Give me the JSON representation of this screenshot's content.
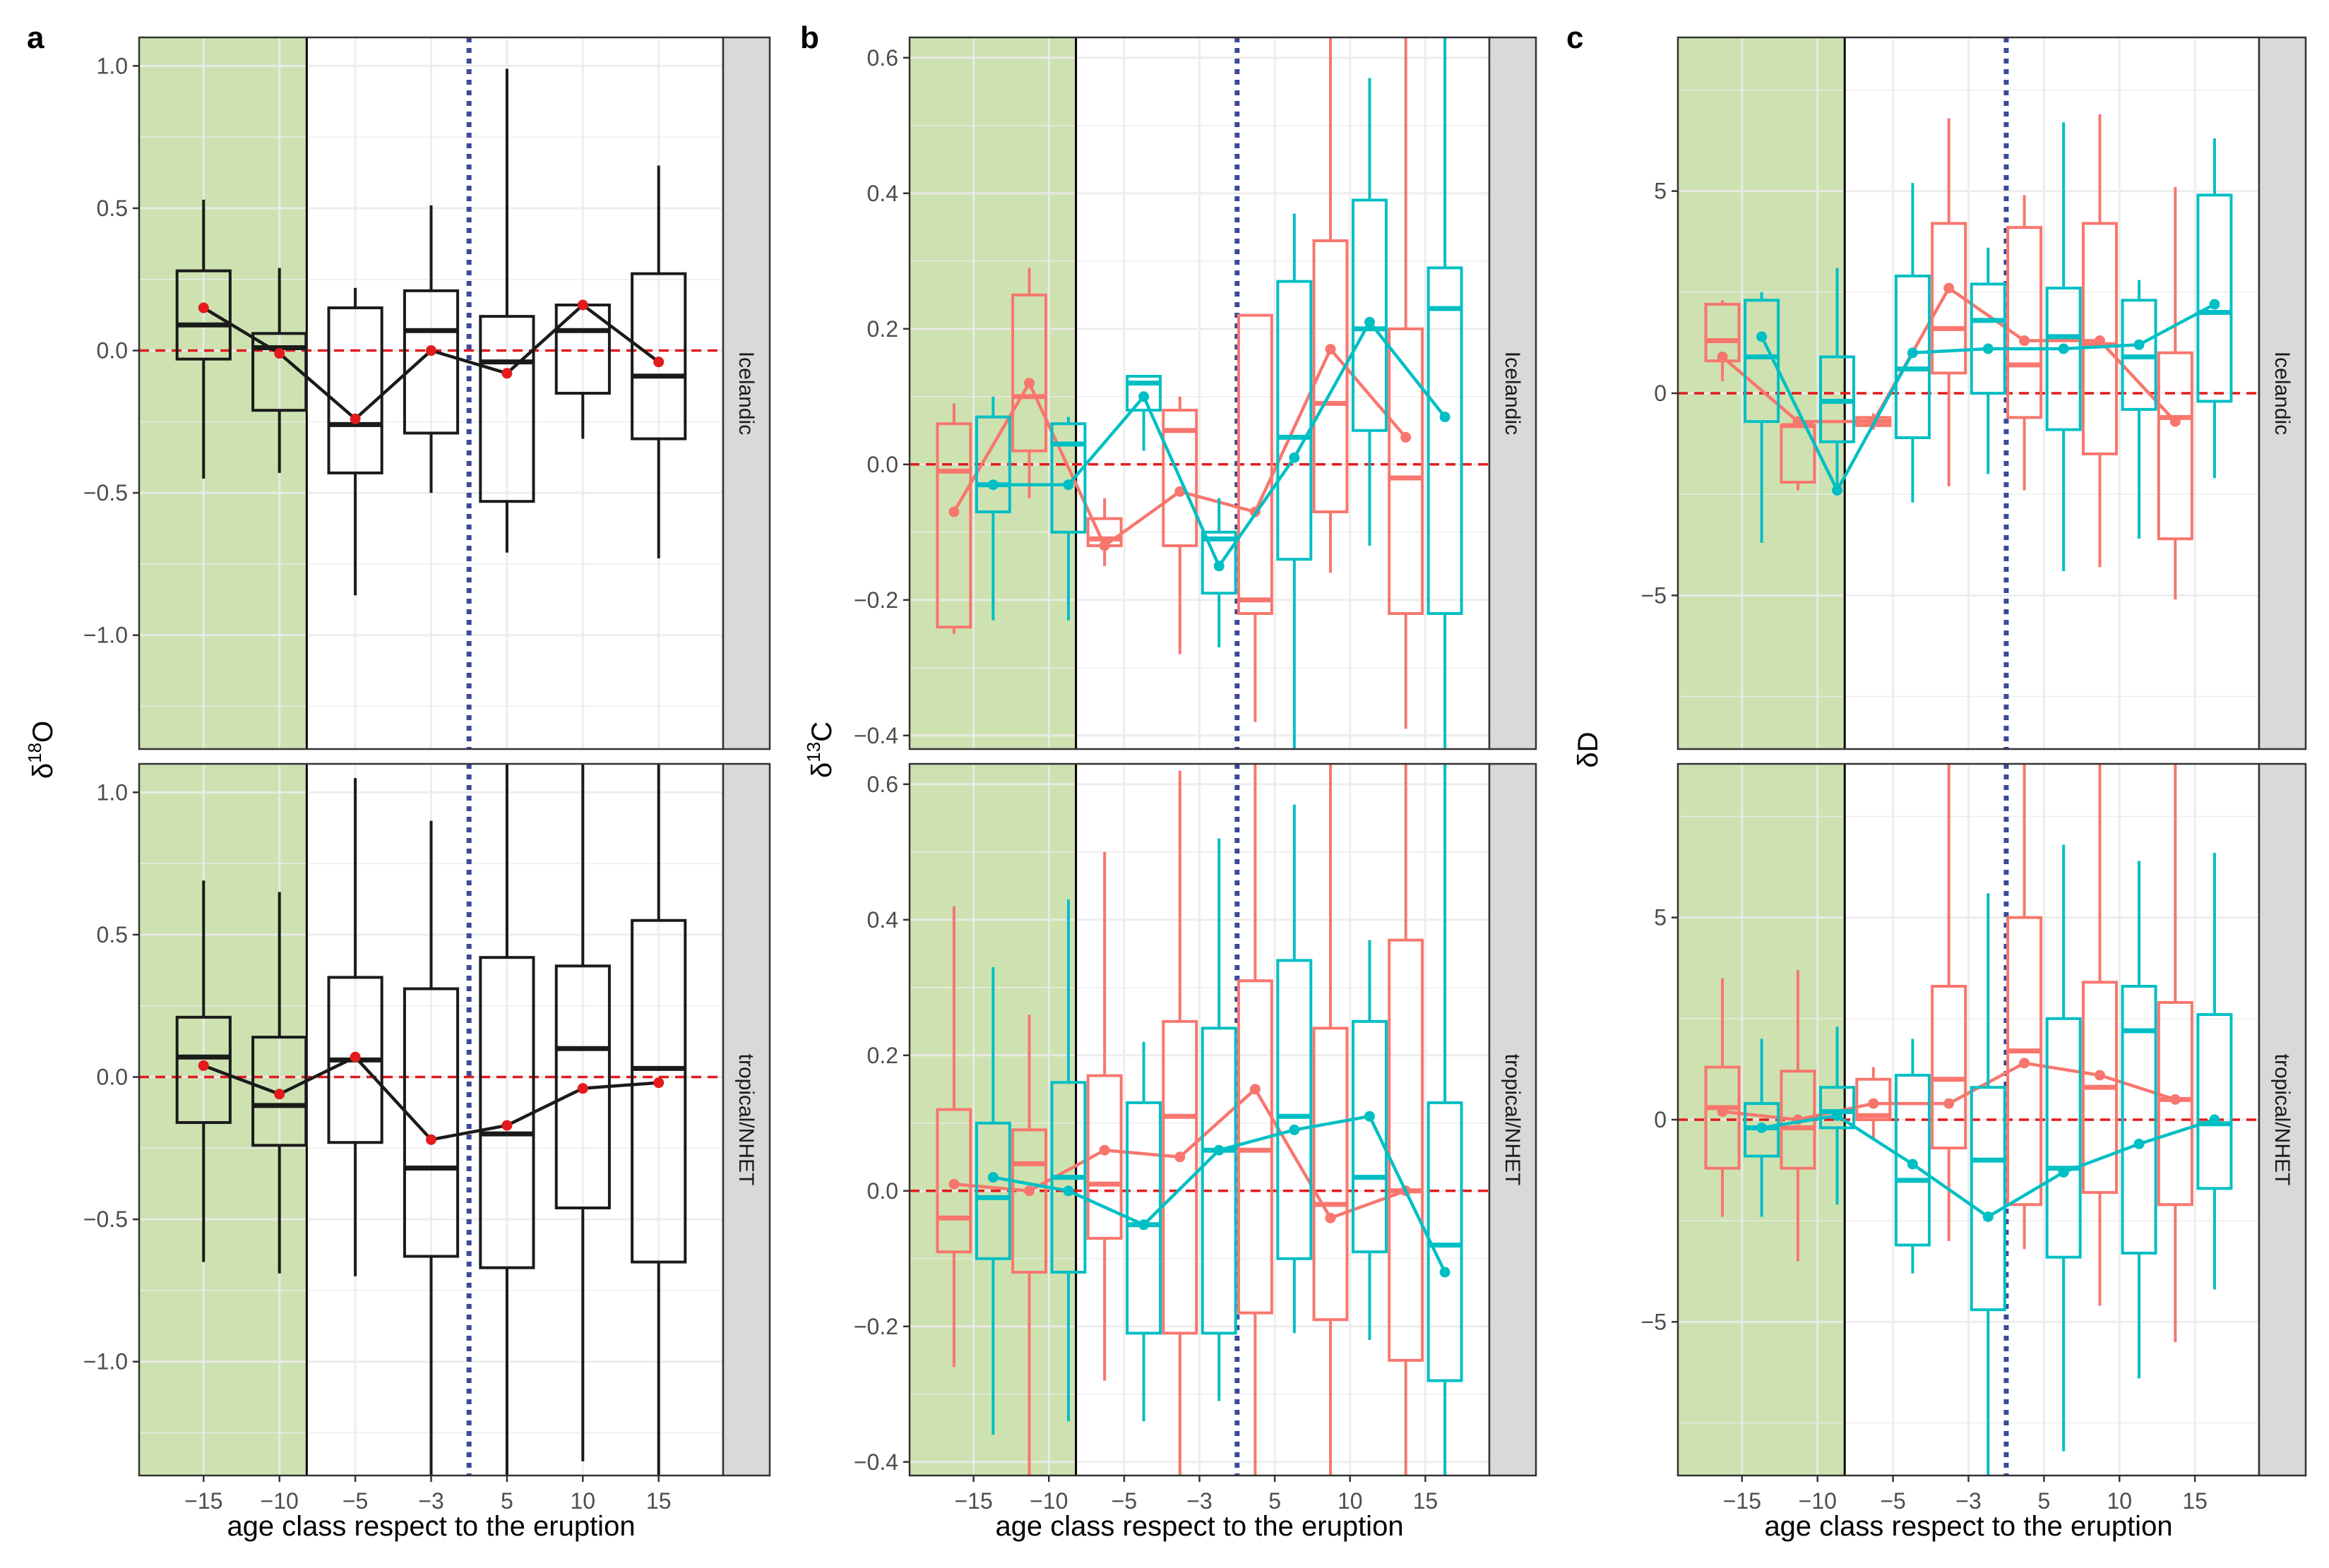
{
  "figure": {
    "xlabel": "age class  respect to the eruption",
    "categories": [
      "−15",
      "−10",
      "−5",
      "−3",
      "5",
      "10",
      "15"
    ],
    "rows": [
      "Icelandic",
      "tropical/NHET"
    ],
    "colors": {
      "black": "#1a1a1a",
      "red": "#F8766D",
      "teal": "#00BFC4",
      "mean_dot": "#E41A1C",
      "zero_line": "#E41A1C",
      "eruption_line": "#3A4A9A",
      "pre_period_fill": "#CDE2B0",
      "strip": "#D9D9D9",
      "grid": "#EBEBEB"
    }
  },
  "chart_data": [
    {
      "panel": "a",
      "type": "boxplot",
      "ylabel_main": "δ",
      "ylabel_sup": "18",
      "ylabel_tail": "O",
      "ylim": [
        -1.4,
        1.1
      ],
      "yticks": [
        -1.0,
        -0.5,
        0.0,
        0.5,
        1.0
      ],
      "ytick_labels": [
        "−1.0",
        "−0.5",
        "0.0",
        "0.5",
        "1.0"
      ],
      "groups": [
        "all"
      ],
      "rows": [
        {
          "strip": "Icelandic",
          "series": [
            {
              "name": "all",
              "color": "black",
              "box": [
                [
                  -0.45,
                  -0.03,
                  0.09,
                  0.28,
                  0.53
                ],
                [
                  -0.43,
                  -0.21,
                  0.01,
                  0.06,
                  0.29
                ],
                [
                  -0.86,
                  -0.43,
                  -0.26,
                  0.15,
                  0.22
                ],
                [
                  -0.5,
                  -0.29,
                  0.07,
                  0.21,
                  0.51
                ],
                [
                  -0.71,
                  -0.53,
                  -0.04,
                  0.12,
                  0.99
                ],
                [
                  -0.31,
                  -0.15,
                  0.07,
                  0.16,
                  0.17
                ],
                [
                  -0.73,
                  -0.31,
                  -0.09,
                  0.27,
                  0.65
                ]
              ],
              "mean": [
                0.15,
                -0.01,
                -0.24,
                0.0,
                -0.08,
                0.16,
                -0.04
              ]
            }
          ]
        },
        {
          "strip": "tropical/NHET",
          "series": [
            {
              "name": "all",
              "color": "black",
              "box": [
                [
                  -0.65,
                  -0.16,
                  0.07,
                  0.21,
                  0.69
                ],
                [
                  -0.69,
                  -0.24,
                  -0.1,
                  0.14,
                  0.65
                ],
                [
                  -0.7,
                  -0.23,
                  0.06,
                  0.35,
                  1.05
                ],
                [
                  -1.4,
                  -0.63,
                  -0.32,
                  0.31,
                  0.9
                ],
                [
                  -1.4,
                  -0.67,
                  -0.2,
                  0.42,
                  1.1
                ],
                [
                  -1.35,
                  -0.46,
                  0.1,
                  0.39,
                  1.1
                ],
                [
                  -1.4,
                  -0.65,
                  0.03,
                  0.55,
                  1.1
                ]
              ],
              "mean": [
                0.04,
                -0.06,
                0.07,
                -0.22,
                -0.17,
                -0.04,
                -0.02
              ]
            }
          ]
        }
      ]
    },
    {
      "panel": "b",
      "type": "boxplot",
      "ylabel_main": "δ",
      "ylabel_sup": "13",
      "ylabel_tail": "C",
      "ylim": [
        -0.42,
        0.63
      ],
      "yticks": [
        -0.4,
        -0.2,
        0.0,
        0.2,
        0.4,
        0.6
      ],
      "ytick_labels": [
        "−0.4",
        "−0.2",
        "0.0",
        "0.2",
        "0.4",
        "0.6"
      ],
      "groups": [
        "red",
        "teal"
      ],
      "rows": [
        {
          "strip": "Icelandic",
          "series": [
            {
              "name": "red",
              "color": "red",
              "box": [
                [
                  -0.25,
                  -0.24,
                  -0.01,
                  0.06,
                  0.09
                ],
                [
                  -0.05,
                  0.02,
                  0.1,
                  0.25,
                  0.29
                ],
                [
                  -0.15,
                  -0.12,
                  -0.11,
                  -0.08,
                  -0.05
                ],
                [
                  -0.28,
                  -0.12,
                  0.05,
                  0.08,
                  0.1
                ],
                [
                  -0.38,
                  -0.22,
                  -0.2,
                  0.22,
                  0.22
                ],
                [
                  -0.16,
                  -0.07,
                  0.09,
                  0.33,
                  0.63
                ],
                [
                  -0.39,
                  -0.22,
                  -0.02,
                  0.2,
                  0.63
                ]
              ],
              "mean": [
                -0.07,
                0.12,
                -0.12,
                -0.04,
                -0.07,
                0.17,
                0.04
              ]
            },
            {
              "name": "teal",
              "color": "teal",
              "box": [
                [
                  -0.23,
                  -0.07,
                  -0.03,
                  0.07,
                  0.1
                ],
                [
                  -0.23,
                  -0.1,
                  0.03,
                  0.06,
                  0.07
                ],
                [
                  0.02,
                  0.08,
                  0.12,
                  0.13,
                  0.13
                ],
                [
                  -0.27,
                  -0.19,
                  -0.11,
                  -0.1,
                  -0.05
                ],
                [
                  -0.42,
                  -0.14,
                  0.04,
                  0.27,
                  0.37
                ],
                [
                  -0.12,
                  0.05,
                  0.2,
                  0.39,
                  0.57
                ],
                [
                  -0.42,
                  -0.22,
                  0.23,
                  0.29,
                  0.63
                ]
              ],
              "mean": [
                -0.03,
                -0.03,
                0.1,
                -0.15,
                0.01,
                0.21,
                0.07
              ]
            }
          ]
        },
        {
          "strip": "tropical/NHET",
          "series": [
            {
              "name": "red",
              "color": "red",
              "box": [
                [
                  -0.26,
                  -0.09,
                  -0.04,
                  0.12,
                  0.42
                ],
                [
                  -0.42,
                  -0.12,
                  0.04,
                  0.09,
                  0.26
                ],
                [
                  -0.28,
                  -0.07,
                  0.01,
                  0.17,
                  0.5
                ],
                [
                  -0.42,
                  -0.21,
                  0.11,
                  0.25,
                  0.62
                ],
                [
                  -0.42,
                  -0.18,
                  0.06,
                  0.31,
                  0.63
                ],
                [
                  -0.42,
                  -0.19,
                  -0.02,
                  0.24,
                  0.63
                ],
                [
                  -0.42,
                  -0.25,
                  0.0,
                  0.37,
                  0.63
                ]
              ],
              "mean": [
                0.01,
                0.0,
                0.06,
                0.05,
                0.15,
                -0.04,
                0.0
              ]
            },
            {
              "name": "teal",
              "color": "teal",
              "box": [
                [
                  -0.36,
                  -0.1,
                  -0.01,
                  0.1,
                  0.33
                ],
                [
                  -0.34,
                  -0.12,
                  0.02,
                  0.16,
                  0.43
                ],
                [
                  -0.34,
                  -0.21,
                  -0.05,
                  0.13,
                  0.22
                ],
                [
                  -0.31,
                  -0.21,
                  0.06,
                  0.24,
                  0.52
                ],
                [
                  -0.21,
                  -0.1,
                  0.11,
                  0.34,
                  0.57
                ],
                [
                  -0.22,
                  -0.09,
                  0.02,
                  0.25,
                  0.37
                ],
                [
                  -0.42,
                  -0.28,
                  -0.08,
                  0.13,
                  0.63
                ]
              ],
              "mean": [
                0.02,
                0.0,
                -0.05,
                0.06,
                0.09,
                0.11,
                -0.12
              ]
            }
          ]
        }
      ]
    },
    {
      "panel": "c",
      "type": "boxplot",
      "ylabel_main": "δD",
      "ylabel_sup": "",
      "ylabel_tail": "",
      "ylim": [
        -8.8,
        8.8
      ],
      "yticks": [
        -5,
        0,
        5
      ],
      "ytick_labels": [
        "−5",
        "0",
        "5"
      ],
      "groups": [
        "red",
        "teal"
      ],
      "rows": [
        {
          "strip": "Icelandic",
          "series": [
            {
              "name": "red",
              "color": "red",
              "box": [
                [
                  0.3,
                  0.8,
                  1.3,
                  2.2,
                  2.3
                ],
                [
                  -2.4,
                  -2.2,
                  -0.8,
                  -0.8,
                  -0.8
                ],
                [
                  -0.9,
                  -0.8,
                  -0.7,
                  -0.6,
                  -0.5
                ],
                [
                  -2.3,
                  0.5,
                  1.6,
                  4.2,
                  6.8
                ],
                [
                  -2.4,
                  -0.6,
                  0.7,
                  4.1,
                  4.9
                ],
                [
                  -4.3,
                  -1.5,
                  1.2,
                  4.2,
                  6.9
                ],
                [
                  -5.1,
                  -3.6,
                  -0.6,
                  1.0,
                  5.1
                ]
              ],
              "mean": [
                0.9,
                -0.7,
                -0.7,
                2.6,
                1.3,
                1.3,
                -0.7
              ]
            },
            {
              "name": "teal",
              "color": "teal",
              "box": [
                [
                  -3.7,
                  -0.7,
                  0.9,
                  2.3,
                  2.5
                ],
                [
                  -2.4,
                  -1.2,
                  -0.2,
                  0.9,
                  3.1
                ],
                [
                  -2.7,
                  -1.1,
                  0.6,
                  2.9,
                  5.2
                ],
                [
                  -2.0,
                  0.0,
                  1.8,
                  2.7,
                  3.6
                ],
                [
                  -4.4,
                  -0.9,
                  1.4,
                  2.6,
                  6.7
                ],
                [
                  -3.6,
                  -0.4,
                  0.9,
                  2.3,
                  2.8
                ],
                [
                  -2.1,
                  -0.2,
                  2.0,
                  4.9,
                  6.3
                ]
              ],
              "mean": [
                1.4,
                -2.4,
                1.0,
                1.1,
                1.1,
                1.2,
                2.2
              ]
            }
          ]
        },
        {
          "strip": "tropical/NHET",
          "series": [
            {
              "name": "red",
              "color": "red",
              "box": [
                [
                  -2.4,
                  -1.2,
                  0.3,
                  1.3,
                  3.5
                ],
                [
                  -3.5,
                  -1.2,
                  -0.2,
                  1.2,
                  3.7
                ],
                [
                  -0.5,
                  0.0,
                  0.1,
                  1.0,
                  1.3
                ],
                [
                  -3.0,
                  -0.7,
                  1.0,
                  3.3,
                  8.8
                ],
                [
                  -3.2,
                  -2.1,
                  1.7,
                  5.0,
                  8.8
                ],
                [
                  -4.6,
                  -1.8,
                  0.8,
                  3.4,
                  8.8
                ],
                [
                  -5.5,
                  -2.1,
                  0.5,
                  2.9,
                  8.8
                ]
              ],
              "mean": [
                0.2,
                0.0,
                0.4,
                0.4,
                1.4,
                1.1,
                0.5
              ]
            },
            {
              "name": "teal",
              "color": "teal",
              "box": [
                [
                  -2.4,
                  -0.9,
                  -0.2,
                  0.4,
                  2.0
                ],
                [
                  -2.1,
                  -0.2,
                  0.2,
                  0.8,
                  2.3
                ],
                [
                  -3.8,
                  -3.1,
                  -1.5,
                  1.1,
                  2.0
                ],
                [
                  -8.8,
                  -4.7,
                  -1.0,
                  0.8,
                  5.6
                ],
                [
                  -8.2,
                  -3.4,
                  -1.2,
                  2.5,
                  6.8
                ],
                [
                  -6.4,
                  -3.3,
                  2.2,
                  3.3,
                  6.4
                ],
                [
                  -4.2,
                  -1.7,
                  -0.1,
                  2.6,
                  6.6
                ]
              ],
              "mean": [
                -0.2,
                0.1,
                -1.1,
                -2.4,
                -1.3,
                -0.6,
                0.0
              ]
            }
          ]
        }
      ]
    }
  ]
}
